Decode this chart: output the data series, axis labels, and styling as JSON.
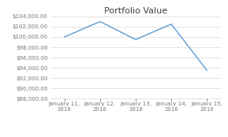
{
  "title": "Portfolio Value",
  "x_labels": [
    "January 11,\n2016",
    "January 12,\n2016",
    "January 13,\n2016",
    "January 14,\n2016",
    "January 15,\n2016"
  ],
  "y_values": [
    100000,
    103000,
    99500,
    102500,
    93500
  ],
  "line_color": "#5B9BD5",
  "background_color": "#FFFFFF",
  "ylim": [
    88000,
    104000
  ],
  "yticks": [
    88000,
    90000,
    92000,
    94000,
    96000,
    98000,
    100000,
    102000,
    104000
  ],
  "title_fontsize": 8,
  "tick_fontsize": 5,
  "grid_color": "#D9D9D9",
  "title_color": "#404040",
  "tick_color": "#767676"
}
